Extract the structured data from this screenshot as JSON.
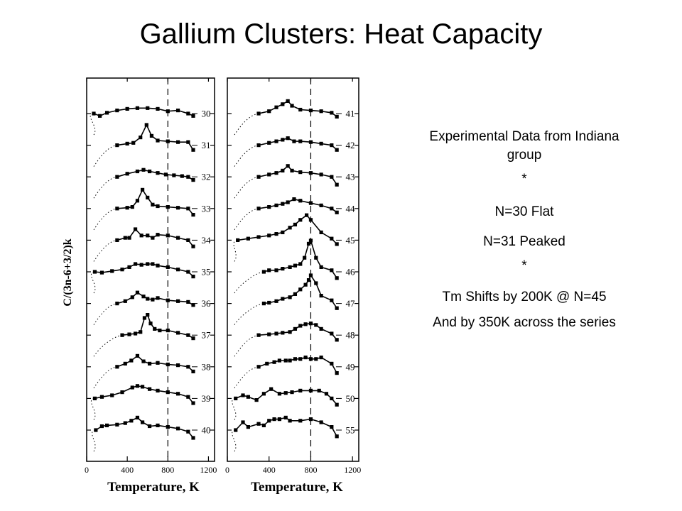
{
  "slide": {
    "title": "Gallium Clusters: Heat Capacity"
  },
  "notes": {
    "line1": "Experimental Data from Indiana group",
    "sep1": "*",
    "line2": "N=30  Flat",
    "line3": "N=31 Peaked",
    "sep2": "*",
    "line4": "Tm Shifts by 200K @ N=45",
    "line5": "And by 350K across the series"
  },
  "chart_data": [
    {
      "type": "line",
      "panel": "left",
      "ylabel": "C/(3n-6+3/2)k",
      "xlabel": "Temperature, K",
      "x_ticks": [
        0,
        400,
        800,
        1200
      ],
      "xlim": [
        0,
        1260
      ],
      "reference_line_x": 800,
      "series": [
        {
          "name": "30",
          "x": [
            70,
            130,
            200,
            300,
            400,
            500,
            600,
            700,
            800,
            900,
            1000,
            1050
          ],
          "dy": [
            0,
            -3,
            1,
            4,
            6,
            7,
            7,
            6,
            3,
            4,
            0,
            -3
          ]
        },
        {
          "name": "31",
          "x": [
            300,
            400,
            460,
            530,
            590,
            640,
            700,
            800,
            900,
            1000,
            1050
          ],
          "dy": [
            0,
            2,
            3,
            10,
            26,
            12,
            6,
            5,
            4,
            4,
            -6
          ]
        },
        {
          "name": "32",
          "x": [
            300,
            400,
            500,
            560,
            620,
            700,
            780,
            860,
            940,
            1000,
            1050
          ],
          "dy": [
            0,
            4,
            7,
            9,
            7,
            5,
            3,
            2,
            1,
            0,
            -4
          ]
        },
        {
          "name": "33",
          "x": [
            300,
            400,
            450,
            500,
            550,
            600,
            650,
            700,
            800,
            900,
            1000,
            1050
          ],
          "dy": [
            0,
            1,
            2,
            10,
            24,
            14,
            5,
            3,
            2,
            1,
            0,
            -8
          ]
        },
        {
          "name": "34",
          "x": [
            300,
            380,
            420,
            480,
            540,
            600,
            650,
            700,
            800,
            900,
            1000,
            1050
          ],
          "dy": [
            0,
            3,
            3,
            14,
            6,
            6,
            3,
            7,
            6,
            3,
            0,
            -8
          ]
        },
        {
          "name": "35",
          "x": [
            80,
            150,
            250,
            350,
            420,
            480,
            540,
            600,
            650,
            700,
            800,
            900,
            1000,
            1050
          ],
          "dy": [
            0,
            -1,
            1,
            3,
            6,
            10,
            9,
            10,
            10,
            8,
            6,
            3,
            0,
            -6
          ]
        },
        {
          "name": "36",
          "x": [
            300,
            380,
            450,
            500,
            560,
            600,
            650,
            700,
            800,
            900,
            1000,
            1050
          ],
          "dy": [
            0,
            3,
            8,
            14,
            9,
            6,
            5,
            7,
            4,
            3,
            2,
            -2
          ]
        },
        {
          "name": "37",
          "x": [
            350,
            420,
            480,
            530,
            570,
            600,
            630,
            670,
            720,
            800,
            900,
            1000,
            1050
          ],
          "dy": [
            0,
            1,
            2,
            4,
            22,
            26,
            15,
            8,
            6,
            6,
            3,
            0,
            -4
          ]
        },
        {
          "name": "38",
          "x": [
            300,
            380,
            440,
            500,
            560,
            620,
            700,
            800,
            900,
            1000,
            1050
          ],
          "dy": [
            0,
            4,
            8,
            14,
            7,
            4,
            5,
            3,
            2,
            0,
            -6
          ]
        },
        {
          "name": "39",
          "x": [
            80,
            150,
            250,
            350,
            450,
            500,
            550,
            620,
            700,
            800,
            900,
            1000,
            1050
          ],
          "dy": [
            0,
            2,
            4,
            8,
            14,
            16,
            15,
            12,
            10,
            8,
            6,
            2,
            -6
          ]
        },
        {
          "name": "40",
          "x": [
            90,
            150,
            200,
            300,
            380,
            440,
            500,
            550,
            620,
            700,
            800,
            900,
            1000,
            1050
          ],
          "dy": [
            0,
            5,
            6,
            7,
            9,
            12,
            16,
            10,
            5,
            6,
            4,
            2,
            -2,
            -10
          ]
        }
      ]
    },
    {
      "type": "line",
      "panel": "right",
      "xlabel": "Temperature, K",
      "x_ticks": [
        0,
        400,
        800,
        1200
      ],
      "xlim": [
        0,
        1260
      ],
      "reference_line_x": 800,
      "series": [
        {
          "name": "41",
          "x": [
            300,
            400,
            470,
            530,
            580,
            620,
            700,
            800,
            900,
            1000,
            1050
          ],
          "dy": [
            0,
            3,
            8,
            12,
            16,
            10,
            5,
            4,
            3,
            1,
            -4
          ]
        },
        {
          "name": "42",
          "x": [
            300,
            400,
            470,
            530,
            580,
            640,
            700,
            800,
            900,
            1000,
            1050
          ],
          "dy": [
            0,
            3,
            5,
            7,
            9,
            5,
            5,
            4,
            2,
            0,
            -6
          ]
        },
        {
          "name": "43",
          "x": [
            300,
            400,
            470,
            530,
            580,
            620,
            700,
            800,
            900,
            1000,
            1050
          ],
          "dy": [
            0,
            3,
            5,
            8,
            14,
            8,
            6,
            5,
            3,
            0,
            -10
          ]
        },
        {
          "name": "44",
          "x": [
            300,
            400,
            470,
            530,
            580,
            640,
            700,
            800,
            900,
            1000,
            1050
          ],
          "dy": [
            0,
            2,
            4,
            6,
            8,
            12,
            10,
            7,
            4,
            0,
            -5
          ]
        },
        {
          "name": "45",
          "x": [
            100,
            200,
            300,
            400,
            470,
            530,
            600,
            650,
            700,
            760,
            800,
            900,
            1000,
            1050
          ],
          "dy": [
            0,
            2,
            4,
            6,
            8,
            10,
            16,
            20,
            26,
            32,
            26,
            10,
            2,
            -5
          ]
        },
        {
          "name": "46",
          "x": [
            350,
            400,
            470,
            530,
            600,
            650,
            700,
            740,
            780,
            800,
            850,
            900,
            1000,
            1050
          ],
          "dy": [
            0,
            2,
            2,
            4,
            6,
            8,
            10,
            18,
            36,
            40,
            18,
            6,
            2,
            -8
          ]
        },
        {
          "name": "47",
          "x": [
            350,
            400,
            470,
            530,
            600,
            650,
            700,
            750,
            780,
            800,
            850,
            900,
            1000,
            1050
          ],
          "dy": [
            0,
            1,
            3,
            6,
            8,
            12,
            18,
            24,
            30,
            36,
            26,
            10,
            4,
            -6
          ]
        },
        {
          "name": "48",
          "x": [
            300,
            400,
            470,
            530,
            600,
            650,
            700,
            750,
            800,
            850,
            900,
            1000,
            1050
          ],
          "dy": [
            0,
            1,
            2,
            3,
            4,
            8,
            12,
            14,
            15,
            13,
            8,
            2,
            -6
          ]
        },
        {
          "name": "49",
          "x": [
            300,
            380,
            450,
            500,
            560,
            600,
            650,
            700,
            750,
            800,
            850,
            900,
            1000,
            1050
          ],
          "dy": [
            0,
            4,
            6,
            8,
            8,
            8,
            10,
            10,
            12,
            10,
            10,
            12,
            4,
            -8
          ]
        },
        {
          "name": "50",
          "x": [
            80,
            150,
            200,
            280,
            350,
            420,
            500,
            560,
            620,
            700,
            800,
            880,
            950,
            1000,
            1050
          ],
          "dy": [
            0,
            4,
            2,
            -2,
            6,
            12,
            6,
            7,
            8,
            10,
            10,
            10,
            6,
            0,
            -8
          ]
        },
        {
          "name": "55",
          "x": [
            80,
            150,
            200,
            300,
            350,
            400,
            450,
            500,
            560,
            600,
            700,
            800,
            900,
            1000,
            1050
          ],
          "dy": [
            0,
            10,
            4,
            8,
            6,
            12,
            14,
            14,
            16,
            12,
            12,
            14,
            10,
            4,
            -8
          ]
        }
      ]
    }
  ]
}
